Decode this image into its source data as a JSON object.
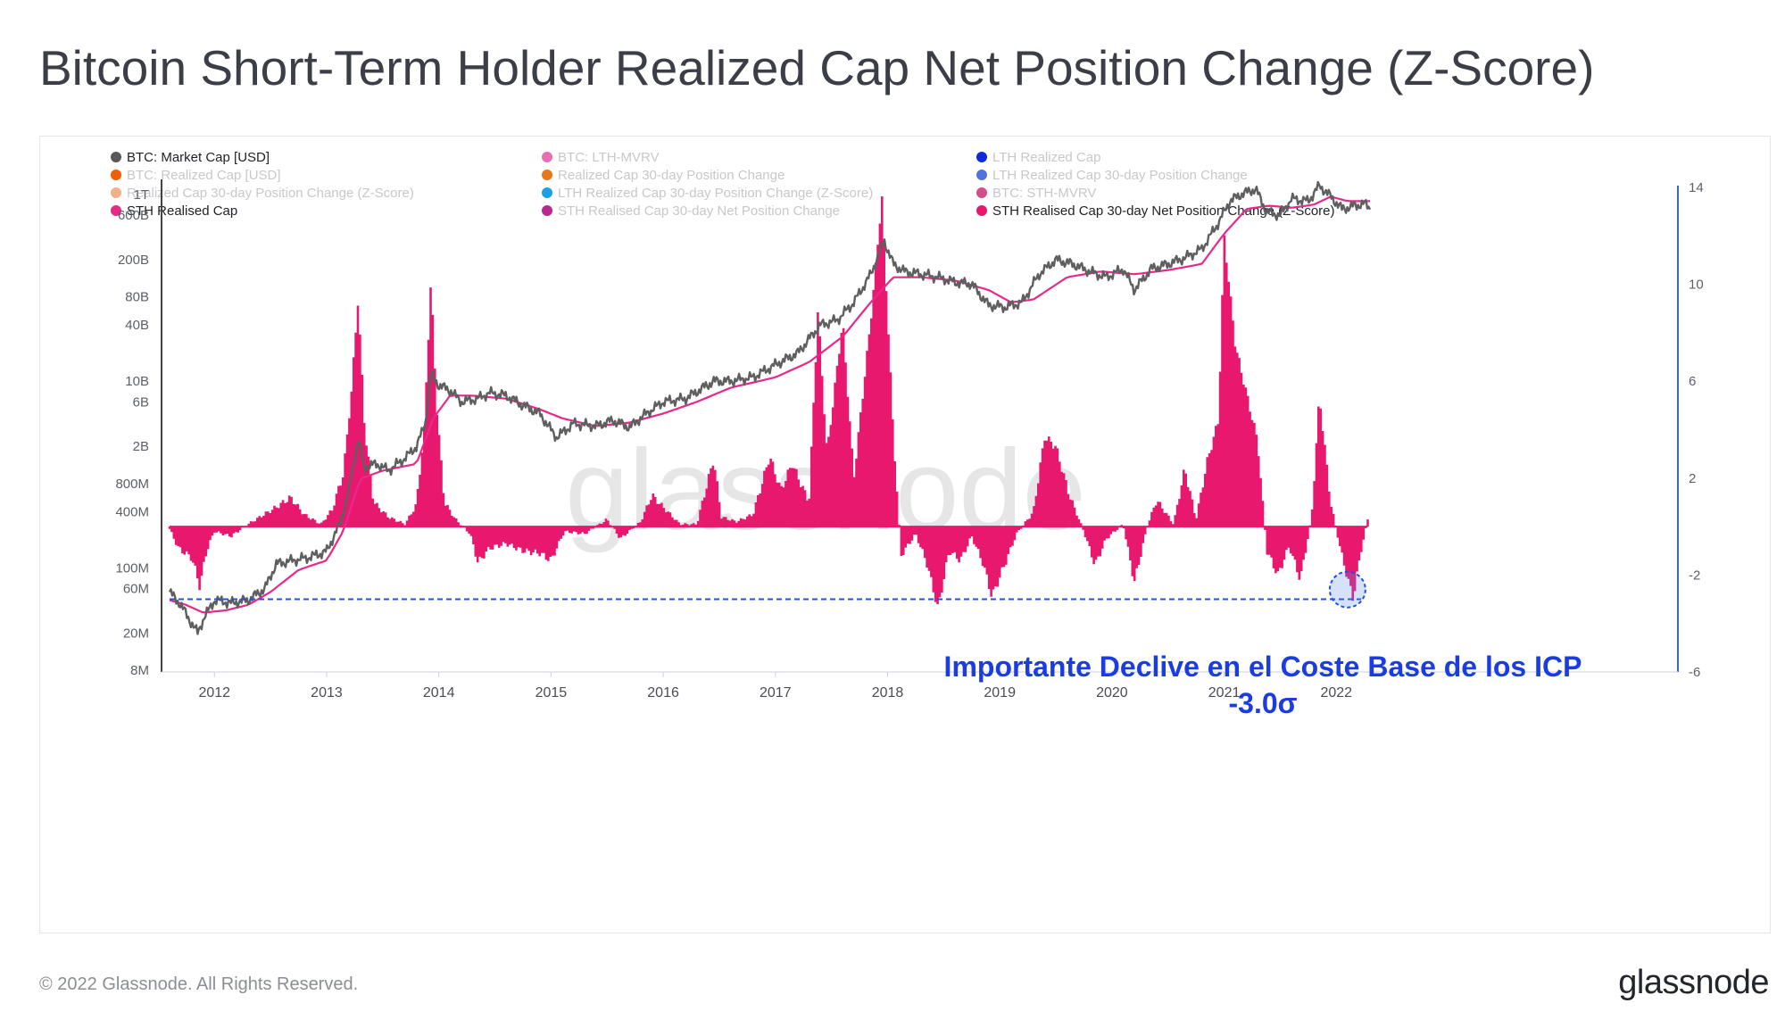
{
  "title": "Bitcoin Short-Term Holder Realized Cap Net Position Change (Z-Score)",
  "footer": {
    "copyright": "© 2022 Glassnode. All Rights Reserved.",
    "logo": "glassnode"
  },
  "watermark": "glassnode",
  "chart_data": {
    "type": "line",
    "legend": [
      {
        "label": "BTC: Market Cap [USD]",
        "color": "#595959",
        "active": true
      },
      {
        "label": "BTC: LTH-MVRV",
        "color": "#e76fb0",
        "active": false
      },
      {
        "label": "LTH Realized Cap",
        "color": "#0d2bd9",
        "active": false
      },
      {
        "label": "BTC: Realized Cap [USD]",
        "color": "#f25c05",
        "active": false
      },
      {
        "label": "Realized Cap 30-day Position Change",
        "color": "#e8761a",
        "active": false
      },
      {
        "label": "LTH Realized Cap 30-day Position Change",
        "color": "#4f74dc",
        "active": false
      },
      {
        "label": "Realized Cap 30-day Position Change (Z-Score)",
        "color": "#f0b08a",
        "active": false
      },
      {
        "label": "LTH Realized Cap 30-day Position Change (Z-Score)",
        "color": "#1ba0e6",
        "active": false
      },
      {
        "label": "BTC: STH-MVRV",
        "color": "#d44f8a",
        "active": false
      },
      {
        "label": "STH Realised Cap",
        "color": "#e8288a",
        "active": true
      },
      {
        "label": "STH Realised Cap 30-day Net Position Change",
        "color": "#b8288f",
        "active": false
      },
      {
        "label": "STH Realised Cap 30-day Net Position Change (Z-Score)",
        "color": "#e8186f",
        "active": true
      }
    ],
    "x_ticks": [
      "2012",
      "2013",
      "2014",
      "2015",
      "2016",
      "2017",
      "2018",
      "2019",
      "2020",
      "2021",
      "2022"
    ],
    "y_left_ticks": [
      {
        "label": "1T",
        "value": 1000000000000
      },
      {
        "label": "600B",
        "value": 600000000000
      },
      {
        "label": "200B",
        "value": 200000000000
      },
      {
        "label": "80B",
        "value": 80000000000
      },
      {
        "label": "40B",
        "value": 40000000000
      },
      {
        "label": "10B",
        "value": 10000000000
      },
      {
        "label": "6B",
        "value": 6000000000
      },
      {
        "label": "2B",
        "value": 2000000000
      },
      {
        "label": "800M",
        "value": 800000000
      },
      {
        "label": "400M",
        "value": 400000000
      },
      {
        "label": "100M",
        "value": 100000000
      },
      {
        "label": "60M",
        "value": 60000000
      },
      {
        "label": "20M",
        "value": 20000000
      },
      {
        "label": "8M",
        "value": 8000000
      }
    ],
    "y_left_scale": "log",
    "y_left_range": [
      8000000,
      1000000000000
    ],
    "y_right_ticks": [
      "14",
      "10",
      "6",
      "2",
      "-2",
      "-6"
    ],
    "y_right_range": [
      -6,
      14
    ],
    "x_range": [
      2011.6,
      2022.3
    ],
    "series": [
      {
        "name": "BTC: Market Cap [USD]",
        "color": "#5f5f5f",
        "axis": "left",
        "points": [
          [
            2011.6,
            55000000
          ],
          [
            2011.7,
            40000000
          ],
          [
            2011.8,
            25000000
          ],
          [
            2011.85,
            20000000
          ],
          [
            2011.9,
            28000000
          ],
          [
            2012.0,
            45000000
          ],
          [
            2012.15,
            42000000
          ],
          [
            2012.3,
            45000000
          ],
          [
            2012.45,
            60000000
          ],
          [
            2012.55,
            110000000
          ],
          [
            2012.7,
            120000000
          ],
          [
            2012.85,
            130000000
          ],
          [
            2013.0,
            150000000
          ],
          [
            2013.12,
            300000000
          ],
          [
            2013.2,
            700000000
          ],
          [
            2013.28,
            2500000000
          ],
          [
            2013.33,
            1200000000
          ],
          [
            2013.45,
            1300000000
          ],
          [
            2013.55,
            1100000000
          ],
          [
            2013.7,
            1500000000
          ],
          [
            2013.8,
            2000000000
          ],
          [
            2013.88,
            3500000000
          ],
          [
            2013.93,
            12000000000
          ],
          [
            2014.0,
            9000000000
          ],
          [
            2014.1,
            8000000000
          ],
          [
            2014.2,
            6000000000
          ],
          [
            2014.35,
            6500000000
          ],
          [
            2014.45,
            7500000000
          ],
          [
            2014.6,
            7000000000
          ],
          [
            2014.75,
            5500000000
          ],
          [
            2014.9,
            4500000000
          ],
          [
            2015.0,
            3000000000
          ],
          [
            2015.05,
            2500000000
          ],
          [
            2015.2,
            3500000000
          ],
          [
            2015.4,
            3300000000
          ],
          [
            2015.55,
            3800000000
          ],
          [
            2015.7,
            3200000000
          ],
          [
            2015.85,
            4500000000
          ],
          [
            2016.0,
            6000000000
          ],
          [
            2016.2,
            6500000000
          ],
          [
            2016.45,
            10000000000
          ],
          [
            2016.6,
            10000000000
          ],
          [
            2016.8,
            11000000000
          ],
          [
            2017.0,
            15000000000
          ],
          [
            2017.2,
            20000000000
          ],
          [
            2017.4,
            40000000000
          ],
          [
            2017.55,
            45000000000
          ],
          [
            2017.7,
            70000000000
          ],
          [
            2017.85,
            140000000000
          ],
          [
            2017.97,
            320000000000
          ],
          [
            2018.05,
            180000000000
          ],
          [
            2018.15,
            150000000000
          ],
          [
            2018.3,
            140000000000
          ],
          [
            2018.45,
            130000000000
          ],
          [
            2018.6,
            115000000000
          ],
          [
            2018.75,
            110000000000
          ],
          [
            2018.9,
            65000000000
          ],
          [
            2019.05,
            62000000000
          ],
          [
            2019.2,
            70000000000
          ],
          [
            2019.35,
            140000000000
          ],
          [
            2019.5,
            200000000000
          ],
          [
            2019.65,
            180000000000
          ],
          [
            2019.8,
            150000000000
          ],
          [
            2019.95,
            130000000000
          ],
          [
            2020.1,
            160000000000
          ],
          [
            2020.2,
            95000000000
          ],
          [
            2020.35,
            160000000000
          ],
          [
            2020.5,
            180000000000
          ],
          [
            2020.65,
            210000000000
          ],
          [
            2020.8,
            260000000000
          ],
          [
            2020.95,
            500000000000
          ],
          [
            2021.05,
            850000000000
          ],
          [
            2021.15,
            1000000000000
          ],
          [
            2021.28,
            1150000000000
          ],
          [
            2021.38,
            650000000000
          ],
          [
            2021.5,
            600000000000
          ],
          [
            2021.6,
            900000000000
          ],
          [
            2021.75,
            850000000000
          ],
          [
            2021.85,
            1250000000000
          ],
          [
            2021.95,
            950000000000
          ],
          [
            2022.05,
            700000000000
          ],
          [
            2022.15,
            750000000000
          ],
          [
            2022.25,
            800000000000
          ],
          [
            2022.3,
            720000000000
          ]
        ]
      },
      {
        "name": "STH Realised Cap",
        "color": "#e8288a",
        "axis": "left",
        "points": [
          [
            2011.6,
            45000000
          ],
          [
            2011.75,
            40000000
          ],
          [
            2011.9,
            33000000
          ],
          [
            2012.1,
            35000000
          ],
          [
            2012.3,
            40000000
          ],
          [
            2012.5,
            55000000
          ],
          [
            2012.75,
            95000000
          ],
          [
            2013.0,
            120000000
          ],
          [
            2013.15,
            250000000
          ],
          [
            2013.3,
            900000000
          ],
          [
            2013.5,
            1100000000
          ],
          [
            2013.8,
            1300000000
          ],
          [
            2013.95,
            4000000000
          ],
          [
            2014.1,
            7000000000
          ],
          [
            2014.3,
            7000000000
          ],
          [
            2014.6,
            6500000000
          ],
          [
            2014.9,
            5000000000
          ],
          [
            2015.1,
            4000000000
          ],
          [
            2015.4,
            3300000000
          ],
          [
            2015.7,
            3600000000
          ],
          [
            2016.0,
            4500000000
          ],
          [
            2016.3,
            6000000000
          ],
          [
            2016.6,
            8500000000
          ],
          [
            2017.0,
            11000000000
          ],
          [
            2017.3,
            16000000000
          ],
          [
            2017.6,
            30000000000
          ],
          [
            2017.85,
            70000000000
          ],
          [
            2018.05,
            130000000000
          ],
          [
            2018.3,
            130000000000
          ],
          [
            2018.6,
            120000000000
          ],
          [
            2018.9,
            95000000000
          ],
          [
            2019.1,
            70000000000
          ],
          [
            2019.3,
            75000000000
          ],
          [
            2019.6,
            130000000000
          ],
          [
            2019.9,
            150000000000
          ],
          [
            2020.2,
            140000000000
          ],
          [
            2020.5,
            155000000000
          ],
          [
            2020.8,
            180000000000
          ],
          [
            2021.0,
            380000000000
          ],
          [
            2021.2,
            700000000000
          ],
          [
            2021.4,
            760000000000
          ],
          [
            2021.6,
            720000000000
          ],
          [
            2021.8,
            780000000000
          ],
          [
            2021.95,
            950000000000
          ],
          [
            2022.1,
            850000000000
          ],
          [
            2022.3,
            850000000000
          ]
        ]
      },
      {
        "name": "STH Realised Cap 30-day Net Position Change (Z-Score)",
        "color": "#e8186f",
        "axis": "right",
        "points": [
          [
            2011.6,
            -0.1
          ],
          [
            2011.68,
            -0.9
          ],
          [
            2011.8,
            -1.3
          ],
          [
            2011.87,
            -2.5
          ],
          [
            2011.93,
            -1.0
          ],
          [
            2012.0,
            -0.2
          ],
          [
            2012.15,
            -0.4
          ],
          [
            2012.3,
            0.1
          ],
          [
            2012.55,
            0.8
          ],
          [
            2012.68,
            1.2
          ],
          [
            2012.8,
            0.5
          ],
          [
            2012.95,
            0.1
          ],
          [
            2013.05,
            0.7
          ],
          [
            2013.15,
            2.2
          ],
          [
            2013.22,
            5.5
          ],
          [
            2013.28,
            9.4
          ],
          [
            2013.34,
            4.0
          ],
          [
            2013.42,
            1.0
          ],
          [
            2013.55,
            0.4
          ],
          [
            2013.7,
            0.1
          ],
          [
            2013.8,
            0.9
          ],
          [
            2013.87,
            4.0
          ],
          [
            2013.93,
            10.2
          ],
          [
            2013.98,
            5.0
          ],
          [
            2014.05,
            1.0
          ],
          [
            2014.15,
            0.3
          ],
          [
            2014.28,
            -0.3
          ],
          [
            2014.35,
            -1.5
          ],
          [
            2014.45,
            -0.9
          ],
          [
            2014.6,
            -0.7
          ],
          [
            2014.75,
            -1.0
          ],
          [
            2014.9,
            -1.1
          ],
          [
            2015.0,
            -1.4
          ],
          [
            2015.12,
            -0.2
          ],
          [
            2015.3,
            -0.3
          ],
          [
            2015.5,
            0.3
          ],
          [
            2015.62,
            -0.5
          ],
          [
            2015.8,
            0.2
          ],
          [
            2015.9,
            1.3
          ],
          [
            2016.0,
            0.8
          ],
          [
            2016.15,
            0.1
          ],
          [
            2016.3,
            0.1
          ],
          [
            2016.45,
            2.8
          ],
          [
            2016.52,
            0.4
          ],
          [
            2016.65,
            0.2
          ],
          [
            2016.8,
            0.5
          ],
          [
            2016.95,
            2.9
          ],
          [
            2017.05,
            1.5
          ],
          [
            2017.15,
            2.6
          ],
          [
            2017.3,
            1.0
          ],
          [
            2017.38,
            9.0
          ],
          [
            2017.46,
            3.0
          ],
          [
            2017.6,
            8.5
          ],
          [
            2017.7,
            2.0
          ],
          [
            2017.85,
            8.5
          ],
          [
            2017.95,
            13.6
          ],
          [
            2018.05,
            4.0
          ],
          [
            2018.12,
            -1.2
          ],
          [
            2018.25,
            -0.3
          ],
          [
            2018.35,
            -1.5
          ],
          [
            2018.45,
            -3.4
          ],
          [
            2018.55,
            -1.0
          ],
          [
            2018.65,
            -1.4
          ],
          [
            2018.75,
            -0.4
          ],
          [
            2018.85,
            -1.5
          ],
          [
            2018.93,
            -2.9
          ],
          [
            2019.05,
            -1.5
          ],
          [
            2019.15,
            -0.3
          ],
          [
            2019.3,
            0.6
          ],
          [
            2019.4,
            3.7
          ],
          [
            2019.5,
            3.3
          ],
          [
            2019.62,
            1.3
          ],
          [
            2019.75,
            -0.2
          ],
          [
            2019.85,
            -1.6
          ],
          [
            2019.95,
            -0.5
          ],
          [
            2020.1,
            0.1
          ],
          [
            2020.2,
            -2.3
          ],
          [
            2020.32,
            0.1
          ],
          [
            2020.4,
            1.1
          ],
          [
            2020.55,
            0.1
          ],
          [
            2020.65,
            2.4
          ],
          [
            2020.75,
            0.3
          ],
          [
            2020.85,
            2.7
          ],
          [
            2020.95,
            4.4
          ],
          [
            2021.0,
            12.0
          ],
          [
            2021.1,
            7.5
          ],
          [
            2021.2,
            5.5
          ],
          [
            2021.3,
            3.5
          ],
          [
            2021.38,
            -1.0
          ],
          [
            2021.48,
            -2.0
          ],
          [
            2021.58,
            -0.8
          ],
          [
            2021.68,
            -2.2
          ],
          [
            2021.78,
            0.4
          ],
          [
            2021.85,
            5.4
          ],
          [
            2021.95,
            1.0
          ],
          [
            2022.05,
            -1.2
          ],
          [
            2022.15,
            -3.0
          ],
          [
            2022.22,
            -1.0
          ],
          [
            2022.28,
            0.3
          ]
        ]
      }
    ],
    "reference_line": {
      "value": -3.0,
      "axis": "right",
      "color": "#2050e8"
    },
    "annotation": {
      "line1": "Importante Declive en el Coste Base de los ICP",
      "line2": "-3.0σ",
      "color": "#1a3ce0",
      "marker_x": 2022.1,
      "marker_y": -2.6
    },
    "grid": false,
    "legend_position": "top-left"
  }
}
